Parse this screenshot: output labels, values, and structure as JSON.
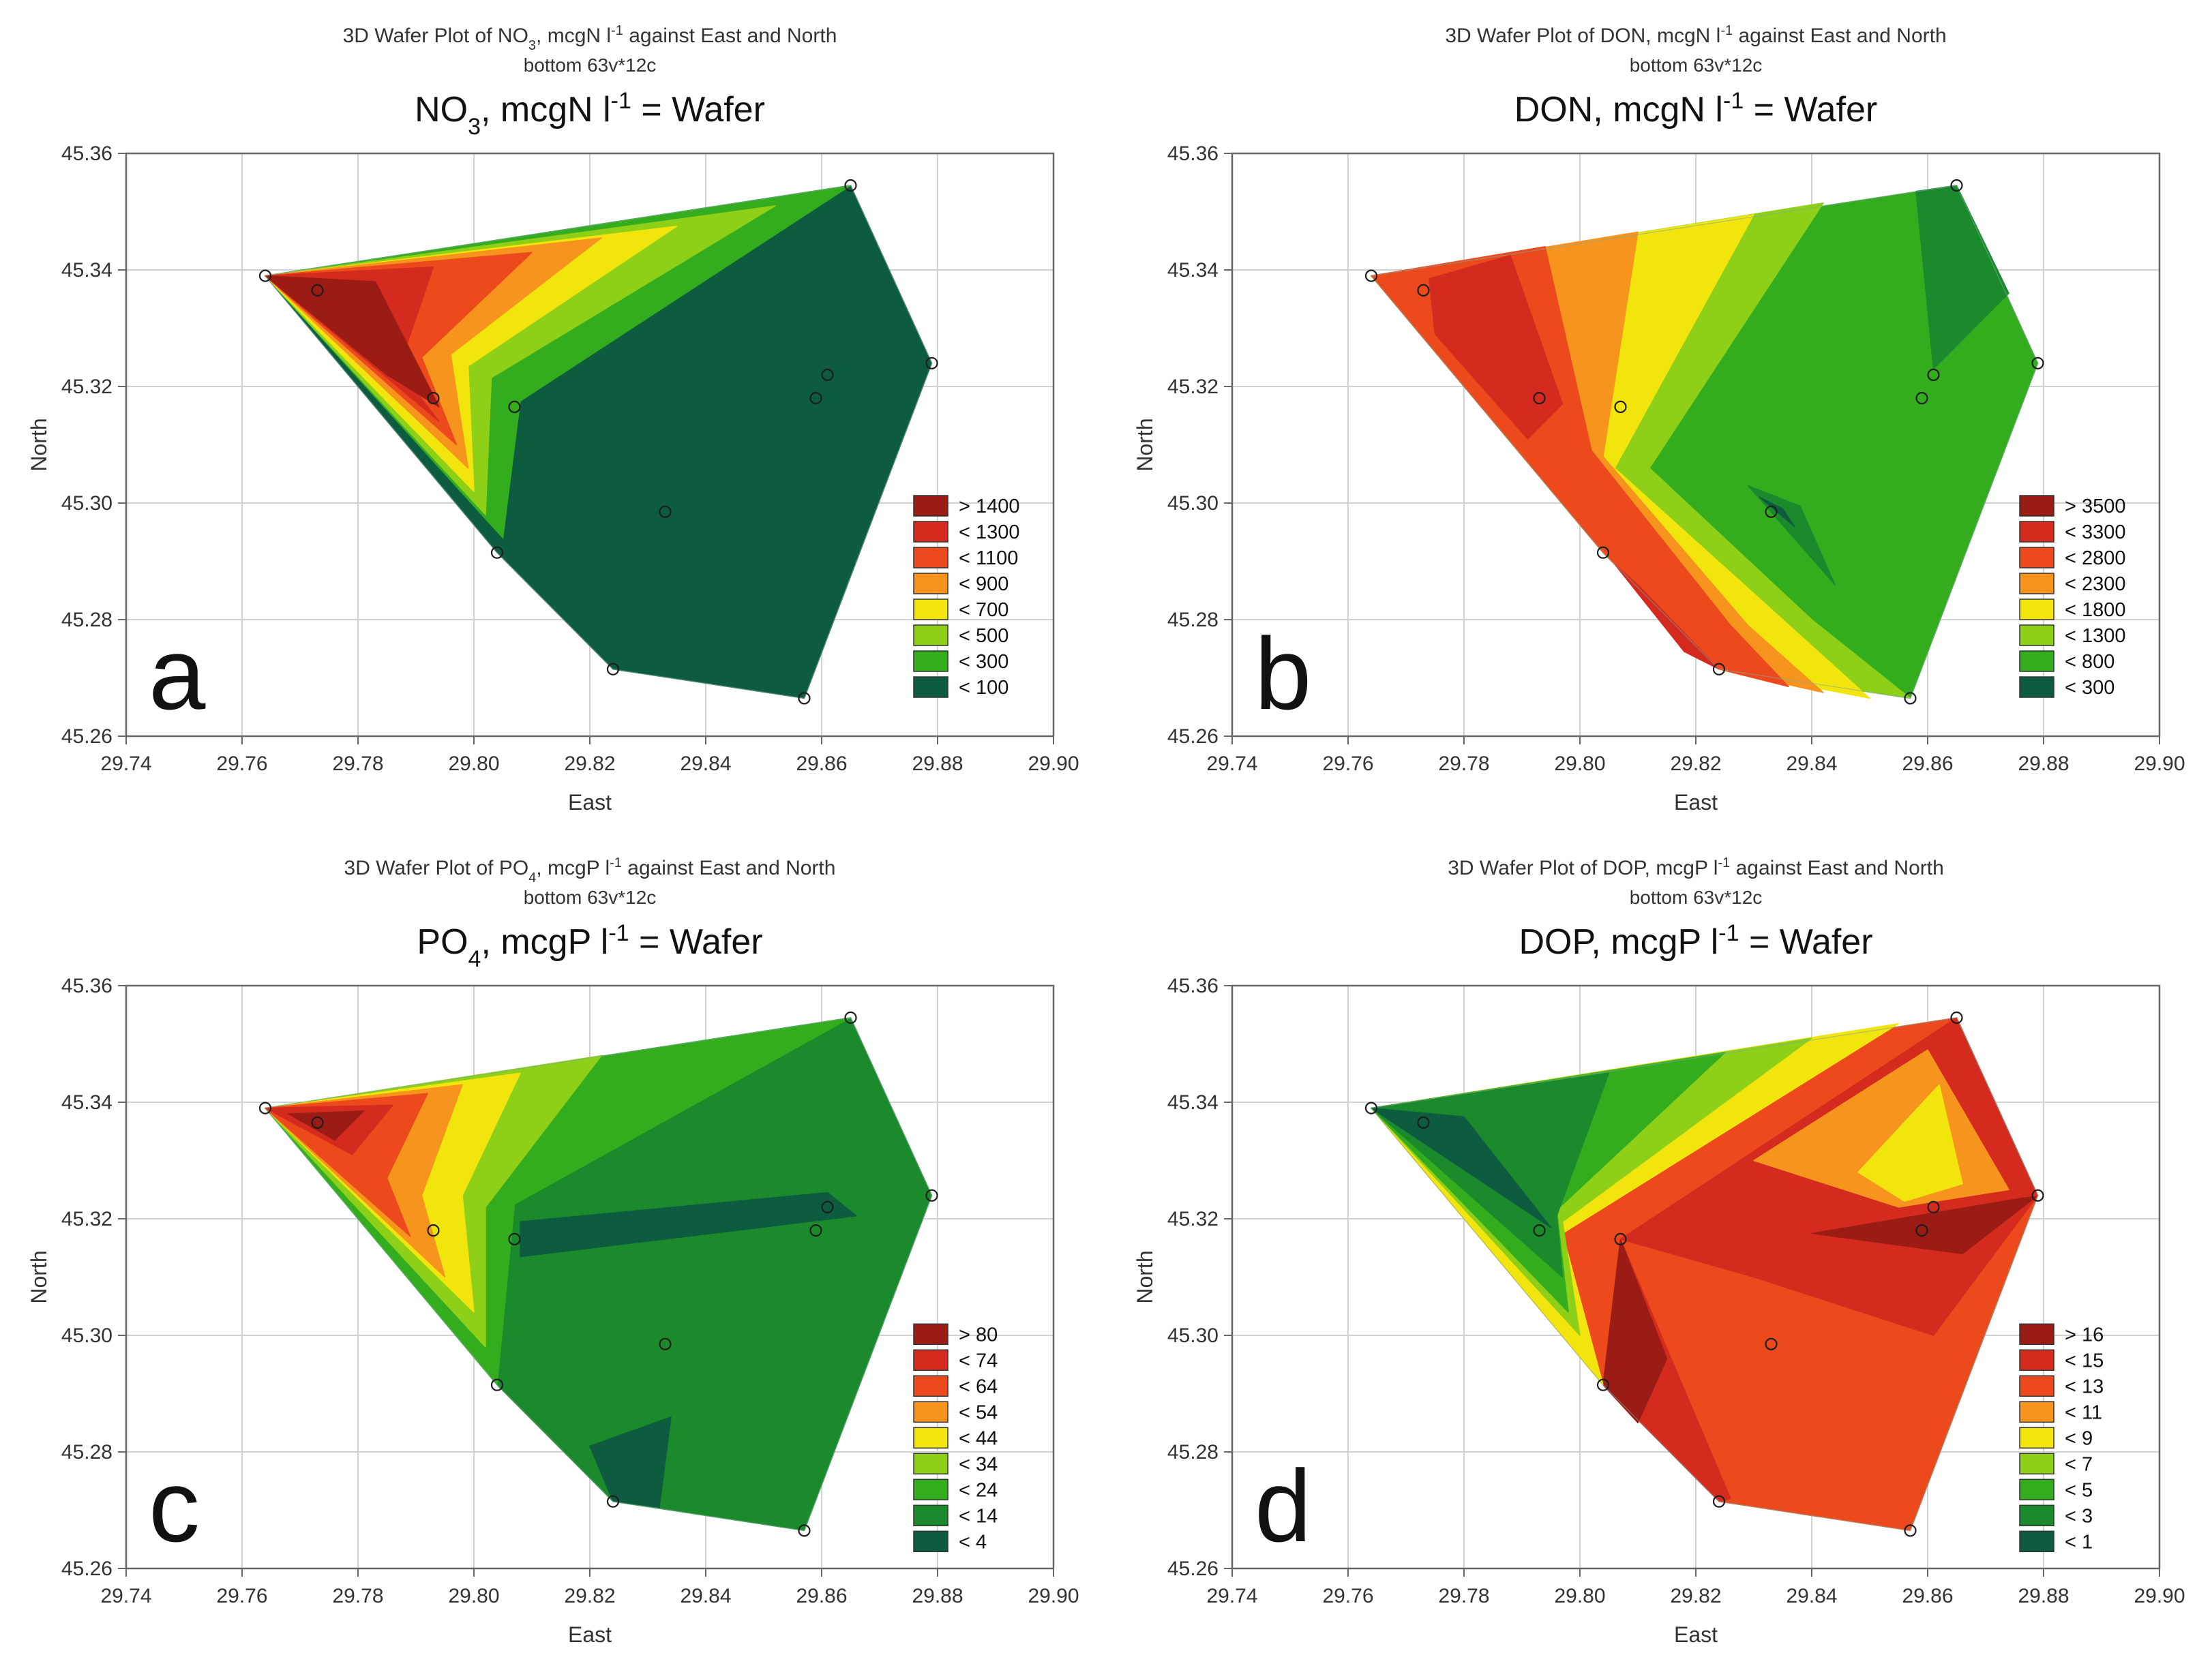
{
  "figure": {
    "palette": {
      "dark_green": "#0d5c40",
      "green2": "#1a8a2c",
      "green3": "#33ad1e",
      "lightgreen": "#8ecf18",
      "yellow": "#f2e50e",
      "orange": "#f7941d",
      "redorange": "#ec4a1c",
      "red": "#d52b1e",
      "darkred": "#9b1c14",
      "grid": "#d2d2d2",
      "frame": "#666666",
      "text": "#333333"
    },
    "stations": [
      {
        "x": 29.764,
        "y": 45.339
      },
      {
        "x": 29.773,
        "y": 45.3365
      },
      {
        "x": 29.793,
        "y": 45.318
      },
      {
        "x": 29.807,
        "y": 45.3165
      },
      {
        "x": 29.804,
        "y": 45.2915
      },
      {
        "x": 29.833,
        "y": 45.2985
      },
      {
        "x": 29.824,
        "y": 45.2715
      },
      {
        "x": 29.857,
        "y": 45.2665
      },
      {
        "x": 29.859,
        "y": 45.318
      },
      {
        "x": 29.861,
        "y": 45.322
      },
      {
        "x": 29.865,
        "y": 45.3545
      },
      {
        "x": 29.879,
        "y": 45.324
      }
    ]
  },
  "chart_data": [
    {
      "type": "heatmap",
      "id": "a",
      "panel_letter": "a",
      "title_line1_pre": "3D Wafer Plot of NO",
      "title_line1_sub": "3",
      "title_line1_mid": ", mcgN l",
      "title_line1_sup": "-1",
      "title_line1_post": " against East and North",
      "title_line2": "bottom 63v*12c",
      "subtitle_pre": "NO",
      "subtitle_sub": "3",
      "subtitle_mid": ", mcgN l",
      "subtitle_sup": "-1",
      "subtitle_post": " = Wafer",
      "xlabel": "East",
      "ylabel": "North",
      "xlim": [
        29.74,
        29.9
      ],
      "ylim": [
        45.26,
        45.36
      ],
      "xticks": [
        "29.74",
        "29.76",
        "29.78",
        "29.80",
        "29.82",
        "29.84",
        "29.86",
        "29.88",
        "29.90"
      ],
      "yticks": [
        "45.26",
        "45.28",
        "45.30",
        "45.32",
        "45.34",
        "45.36"
      ],
      "legend": [
        {
          "label": "> 1400",
          "color": "#9b1c14"
        },
        {
          "label": "< 1300",
          "color": "#d52b1e"
        },
        {
          "label": "< 1100",
          "color": "#ec4a1c"
        },
        {
          "label": "< 900",
          "color": "#f7941d"
        },
        {
          "label": "< 700",
          "color": "#f2e50e"
        },
        {
          "label": "< 500",
          "color": "#8ecf18"
        },
        {
          "label": "< 300",
          "color": "#33ad1e"
        },
        {
          "label": "< 100",
          "color": "#0d5c40"
        }
      ]
    },
    {
      "type": "heatmap",
      "id": "b",
      "panel_letter": "b",
      "title_line1_pre": "3D Wafer Plot of DON, mcgN l",
      "title_line1_sub": "",
      "title_line1_mid": "",
      "title_line1_sup": "-1",
      "title_line1_post": " against East and North",
      "title_line2": "bottom 63v*12c",
      "subtitle_pre": "DON, mcgN l",
      "subtitle_sub": "",
      "subtitle_mid": "",
      "subtitle_sup": "-1",
      "subtitle_post": " = Wafer",
      "xlabel": "East",
      "ylabel": "North",
      "xlim": [
        29.74,
        29.9
      ],
      "ylim": [
        45.26,
        45.36
      ],
      "xticks": [
        "29.74",
        "29.76",
        "29.78",
        "29.80",
        "29.82",
        "29.84",
        "29.86",
        "29.88",
        "29.90"
      ],
      "yticks": [
        "45.26",
        "45.28",
        "45.30",
        "45.32",
        "45.34",
        "45.36"
      ],
      "legend": [
        {
          "label": "> 3500",
          "color": "#9b1c14"
        },
        {
          "label": "< 3300",
          "color": "#d52b1e"
        },
        {
          "label": "< 2800",
          "color": "#ec4a1c"
        },
        {
          "label": "< 2300",
          "color": "#f7941d"
        },
        {
          "label": "< 1800",
          "color": "#f2e50e"
        },
        {
          "label": "< 1300",
          "color": "#8ecf18"
        },
        {
          "label": "< 800",
          "color": "#33ad1e"
        },
        {
          "label": "< 300",
          "color": "#0d5c40"
        }
      ]
    },
    {
      "type": "heatmap",
      "id": "c",
      "panel_letter": "c",
      "title_line1_pre": "3D Wafer Plot of PO",
      "title_line1_sub": "4",
      "title_line1_mid": ", mcgP l",
      "title_line1_sup": "-1",
      "title_line1_post": " against East and North",
      "title_line2": "bottom 63v*12c",
      "subtitle_pre": "PO",
      "subtitle_sub": "4",
      "subtitle_mid": ", mcgP l",
      "subtitle_sup": "-1",
      "subtitle_post": " = Wafer",
      "xlabel": "East",
      "ylabel": "North",
      "xlim": [
        29.74,
        29.9
      ],
      "ylim": [
        45.26,
        45.36
      ],
      "xticks": [
        "29.74",
        "29.76",
        "29.78",
        "29.80",
        "29.82",
        "29.84",
        "29.86",
        "29.88",
        "29.90"
      ],
      "yticks": [
        "45.26",
        "45.28",
        "45.30",
        "45.32",
        "45.34",
        "45.36"
      ],
      "legend": [
        {
          "label": "> 80",
          "color": "#9b1c14"
        },
        {
          "label": "< 74",
          "color": "#d52b1e"
        },
        {
          "label": "< 64",
          "color": "#ec4a1c"
        },
        {
          "label": "< 54",
          "color": "#f7941d"
        },
        {
          "label": "< 44",
          "color": "#f2e50e"
        },
        {
          "label": "< 34",
          "color": "#8ecf18"
        },
        {
          "label": "< 24",
          "color": "#33ad1e"
        },
        {
          "label": "< 14",
          "color": "#1a8a2c"
        },
        {
          "label": "< 4",
          "color": "#0d5c40"
        }
      ]
    },
    {
      "type": "heatmap",
      "id": "d",
      "panel_letter": "d",
      "title_line1_pre": "3D Wafer Plot of DOP, mcgP l",
      "title_line1_sub": "",
      "title_line1_mid": "",
      "title_line1_sup": "-1",
      "title_line1_post": " against East and North",
      "title_line2": "bottom 63v*12c",
      "subtitle_pre": "DOP, mcgP l",
      "subtitle_sub": "",
      "subtitle_mid": "",
      "subtitle_sup": "-1",
      "subtitle_post": " = Wafer",
      "xlabel": "East",
      "ylabel": "North",
      "xlim": [
        29.74,
        29.9
      ],
      "ylim": [
        45.26,
        45.36
      ],
      "xticks": [
        "29.74",
        "29.76",
        "29.78",
        "29.80",
        "29.82",
        "29.84",
        "29.86",
        "29.88",
        "29.90"
      ],
      "yticks": [
        "45.26",
        "45.28",
        "45.30",
        "45.32",
        "45.34",
        "45.36"
      ],
      "legend": [
        {
          "label": "> 16",
          "color": "#9b1c14"
        },
        {
          "label": "< 15",
          "color": "#d52b1e"
        },
        {
          "label": "< 13",
          "color": "#ec4a1c"
        },
        {
          "label": "< 11",
          "color": "#f7941d"
        },
        {
          "label": "< 9",
          "color": "#f2e50e"
        },
        {
          "label": "< 7",
          "color": "#8ecf18"
        },
        {
          "label": "< 5",
          "color": "#33ad1e"
        },
        {
          "label": "< 3",
          "color": "#1a8a2c"
        },
        {
          "label": "< 1",
          "color": "#0d5c40"
        }
      ]
    }
  ]
}
